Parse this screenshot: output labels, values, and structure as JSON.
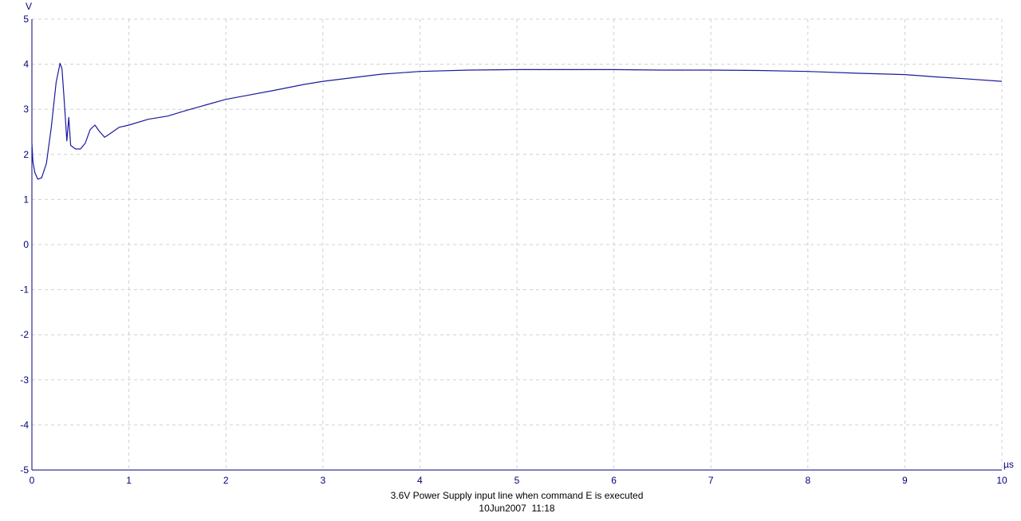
{
  "chart_data": {
    "type": "line",
    "title": "3.6V Power Supply input line when command E is executed",
    "timestamp": "10Jun2007  11:18",
    "xlabel": "µs",
    "ylabel": "V",
    "xlim": [
      0,
      10
    ],
    "ylim": [
      -5,
      5
    ],
    "x_ticks": [
      0,
      1,
      2,
      3,
      4,
      5,
      6,
      7,
      8,
      9,
      10
    ],
    "y_ticks": [
      5,
      4,
      3,
      2,
      1,
      0,
      -1,
      -2,
      -3,
      -4,
      -5
    ],
    "grid": true,
    "grid_style": "dashed",
    "series": [
      {
        "color": "#1a1a9e",
        "points": [
          [
            0.0,
            2.25
          ],
          [
            0.01,
            1.85
          ],
          [
            0.03,
            1.6
          ],
          [
            0.06,
            1.45
          ],
          [
            0.1,
            1.48
          ],
          [
            0.15,
            1.8
          ],
          [
            0.2,
            2.6
          ],
          [
            0.25,
            3.6
          ],
          [
            0.29,
            4.02
          ],
          [
            0.31,
            3.9
          ],
          [
            0.33,
            3.3
          ],
          [
            0.36,
            2.3
          ],
          [
            0.38,
            2.82
          ],
          [
            0.4,
            2.2
          ],
          [
            0.45,
            2.12
          ],
          [
            0.5,
            2.12
          ],
          [
            0.55,
            2.25
          ],
          [
            0.6,
            2.55
          ],
          [
            0.65,
            2.65
          ],
          [
            0.7,
            2.5
          ],
          [
            0.75,
            2.38
          ],
          [
            0.8,
            2.45
          ],
          [
            0.9,
            2.6
          ],
          [
            1.0,
            2.65
          ],
          [
            1.2,
            2.78
          ],
          [
            1.4,
            2.85
          ],
          [
            1.6,
            2.98
          ],
          [
            1.8,
            3.1
          ],
          [
            2.0,
            3.22
          ],
          [
            2.2,
            3.3
          ],
          [
            2.5,
            3.42
          ],
          [
            2.8,
            3.55
          ],
          [
            3.0,
            3.62
          ],
          [
            3.3,
            3.7
          ],
          [
            3.6,
            3.78
          ],
          [
            4.0,
            3.84
          ],
          [
            4.5,
            3.87
          ],
          [
            5.0,
            3.88
          ],
          [
            5.5,
            3.88
          ],
          [
            6.0,
            3.88
          ],
          [
            6.5,
            3.87
          ],
          [
            7.0,
            3.87
          ],
          [
            7.5,
            3.86
          ],
          [
            8.0,
            3.84
          ],
          [
            8.5,
            3.8
          ],
          [
            9.0,
            3.77
          ],
          [
            9.3,
            3.72
          ],
          [
            9.6,
            3.68
          ],
          [
            10.0,
            3.62
          ]
        ]
      }
    ]
  }
}
